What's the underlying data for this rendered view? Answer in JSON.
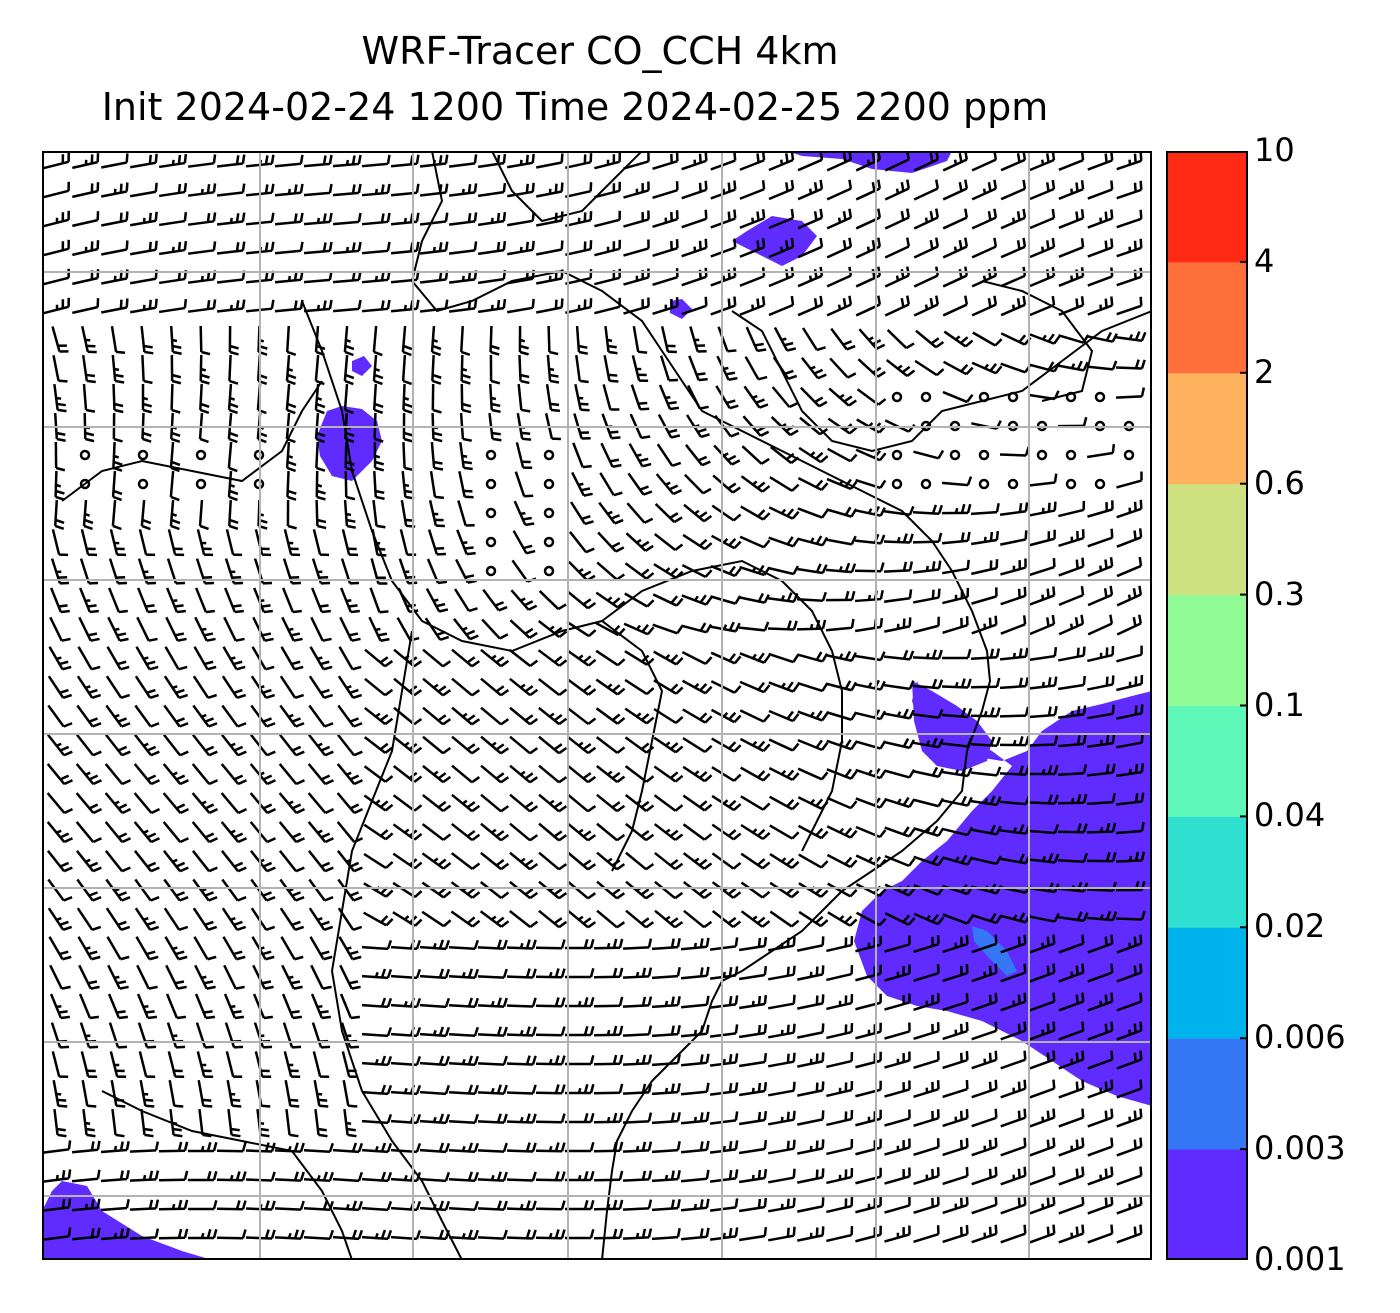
{
  "title": {
    "line1": "WRF-Tracer CO_CCH 4km",
    "line2": "Init 2024-02-24 1200 Time 2024-02-25 2200 ppm"
  },
  "colorbar": {
    "levels": [
      "0.001",
      "0.003",
      "0.006",
      "0.02",
      "0.04",
      "0.1",
      "0.3",
      "0.6",
      "2",
      "4",
      "10"
    ],
    "colors": [
      "#5f2bff",
      "#3577f5",
      "#00b3ec",
      "#2fdfd0",
      "#5ff7b8",
      "#90fa94",
      "#cfe081",
      "#ffb35f",
      "#ff6f39",
      "#ff2a13"
    ]
  },
  "plume": {
    "color": "#5f2bff",
    "inner_color": "#3577f5"
  },
  "colors": {
    "barb": "#000000",
    "grid": "#b3b3b3",
    "coast": "#000000"
  }
}
